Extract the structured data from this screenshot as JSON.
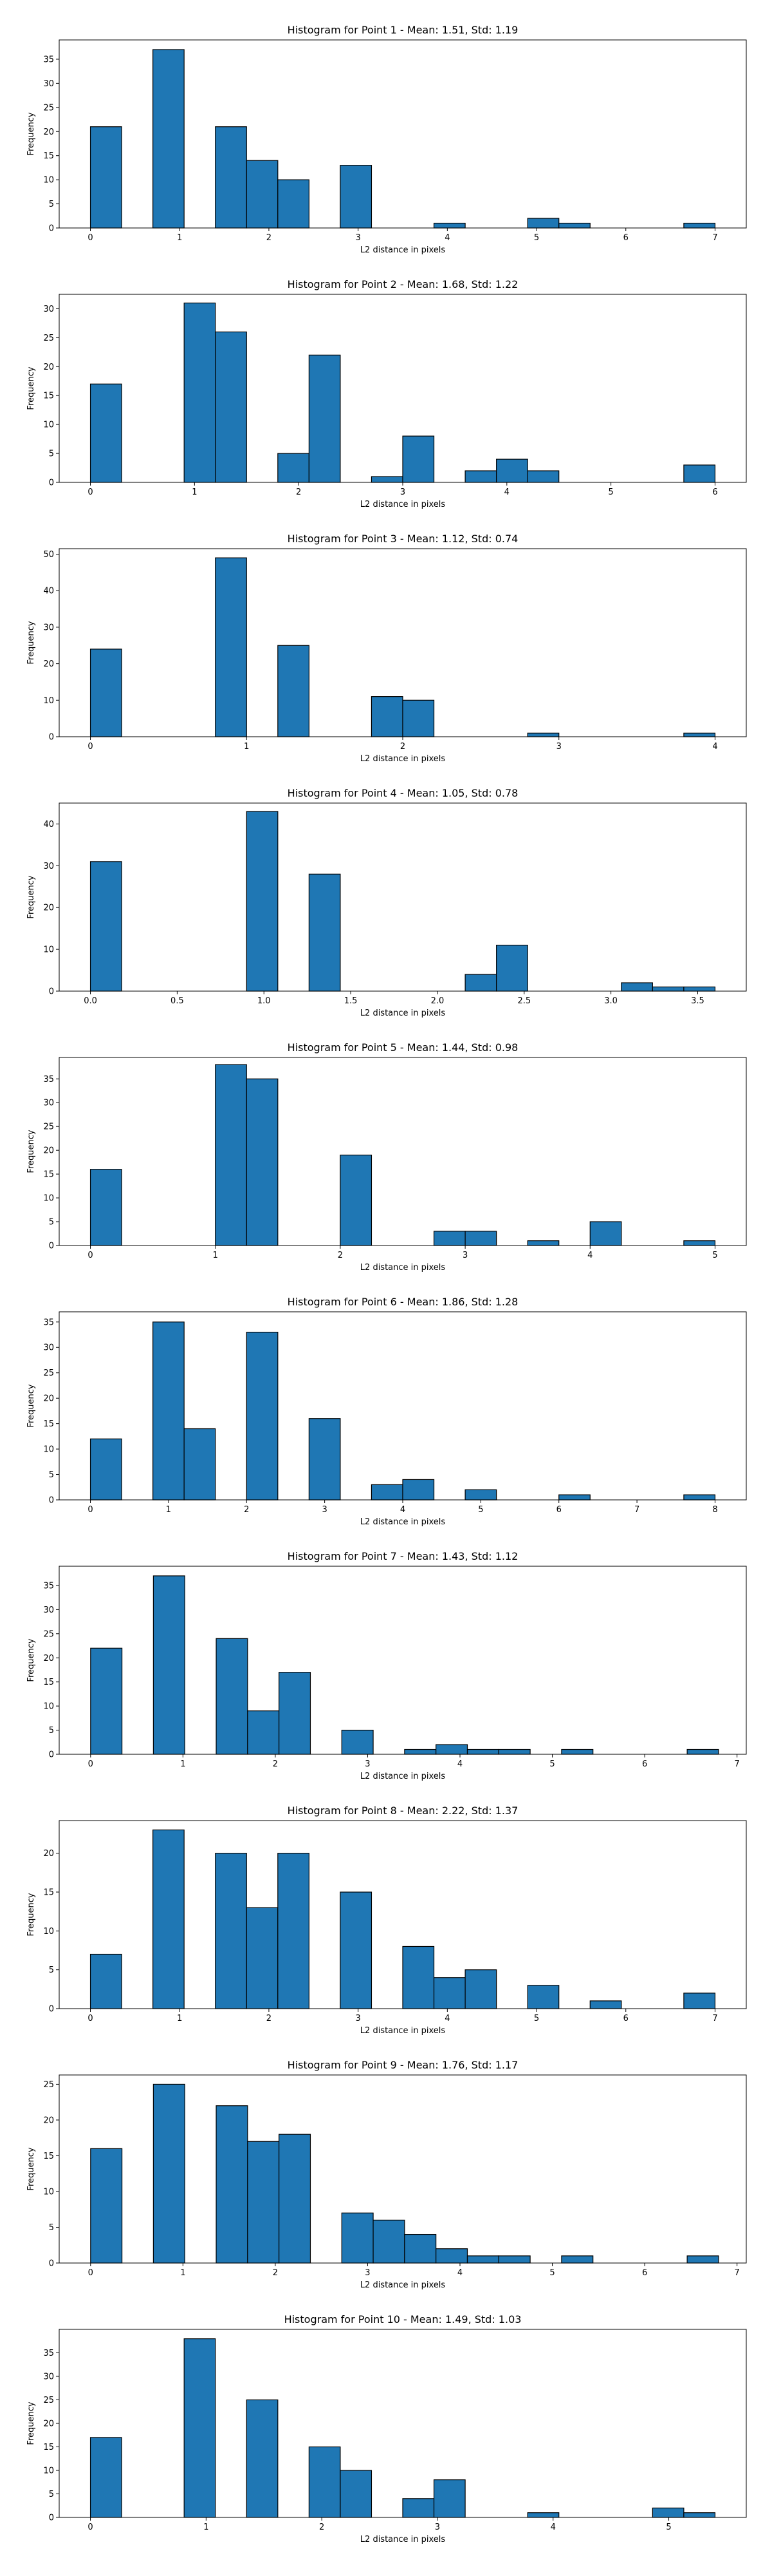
{
  "figure": {
    "background": "#ffffff",
    "bar_color": "#1f77b4",
    "edge_color": "#000000"
  },
  "chart_data": [
    {
      "type": "bar",
      "title": "Histogram for Point 1 - Mean: 1.51, Std: 1.19",
      "xlabel": "L2 distance in pixels",
      "ylabel": "Frequency",
      "xlim": [
        -0.35,
        7.35
      ],
      "ylim": [
        0,
        39
      ],
      "xticks": [
        0,
        1,
        2,
        3,
        4,
        5,
        6,
        7
      ],
      "xtick_labels": [
        "0",
        "1",
        "2",
        "3",
        "4",
        "5",
        "6",
        "7"
      ],
      "yticks": [
        0,
        5,
        10,
        15,
        20,
        25,
        30,
        35
      ],
      "ytick_labels": [
        "0",
        "5",
        "10",
        "15",
        "20",
        "25",
        "30",
        "35"
      ],
      "bins": [
        [
          0,
          0.35,
          21
        ],
        [
          0.7,
          1.05,
          37
        ],
        [
          1.4,
          1.75,
          21
        ],
        [
          1.75,
          2.1,
          14
        ],
        [
          2.1,
          2.45,
          10
        ],
        [
          2.8,
          3.15,
          13
        ],
        [
          3.85,
          4.2,
          1
        ],
        [
          4.9,
          5.25,
          2
        ],
        [
          5.25,
          5.6,
          1
        ],
        [
          6.65,
          7.0,
          1
        ]
      ]
    },
    {
      "type": "bar",
      "title": "Histogram for Point 2 - Mean: 1.68, Std: 1.22",
      "xlabel": "L2 distance in pixels",
      "ylabel": "Frequency",
      "xlim": [
        -0.3,
        6.3
      ],
      "ylim": [
        0,
        32.5
      ],
      "xticks": [
        0,
        1,
        2,
        3,
        4,
        5,
        6
      ],
      "xtick_labels": [
        "0",
        "1",
        "2",
        "3",
        "4",
        "5",
        "6"
      ],
      "yticks": [
        0,
        5,
        10,
        15,
        20,
        25,
        30
      ],
      "ytick_labels": [
        "0",
        "5",
        "10",
        "15",
        "20",
        "25",
        "30"
      ],
      "bins": [
        [
          0,
          0.3,
          17
        ],
        [
          0.9,
          1.2,
          31
        ],
        [
          1.2,
          1.5,
          26
        ],
        [
          1.8,
          2.1,
          5
        ],
        [
          2.1,
          2.4,
          22
        ],
        [
          2.7,
          3.0,
          1
        ],
        [
          3.0,
          3.3,
          8
        ],
        [
          3.6,
          3.9,
          2
        ],
        [
          3.9,
          4.2,
          4
        ],
        [
          4.2,
          4.5,
          2
        ],
        [
          5.7,
          6.0,
          3
        ]
      ]
    },
    {
      "type": "bar",
      "title": "Histogram for Point 3 - Mean: 1.12, Std: 0.74",
      "xlabel": "L2 distance in pixels",
      "ylabel": "Frequency",
      "xlim": [
        -0.2,
        4.2
      ],
      "ylim": [
        0,
        51.5
      ],
      "xticks": [
        0,
        1,
        2,
        3,
        4
      ],
      "xtick_labels": [
        "0",
        "1",
        "2",
        "3",
        "4"
      ],
      "yticks": [
        0,
        10,
        20,
        30,
        40,
        50
      ],
      "ytick_labels": [
        "0",
        "10",
        "20",
        "30",
        "40",
        "50"
      ],
      "bins": [
        [
          0,
          0.2,
          24
        ],
        [
          0.8,
          1.0,
          49
        ],
        [
          1.2,
          1.4,
          25
        ],
        [
          1.8,
          2.0,
          11
        ],
        [
          2.0,
          2.2,
          10
        ],
        [
          2.8,
          3.0,
          1
        ],
        [
          3.8,
          4.0,
          1
        ]
      ]
    },
    {
      "type": "bar",
      "title": "Histogram for Point 4 - Mean: 1.05, Std: 0.78",
      "xlabel": "L2 distance in pixels",
      "ylabel": "Frequency",
      "xlim": [
        -0.18,
        3.78
      ],
      "ylim": [
        0,
        45
      ],
      "xticks": [
        0,
        0.5,
        1,
        1.5,
        2,
        2.5,
        3,
        3.5
      ],
      "xtick_labels": [
        "0.0",
        "0.5",
        "1.0",
        "1.5",
        "2.0",
        "2.5",
        "3.0",
        "3.5"
      ],
      "yticks": [
        0,
        10,
        20,
        30,
        40
      ],
      "ytick_labels": [
        "0",
        "10",
        "20",
        "30",
        "40"
      ],
      "bins": [
        [
          0,
          0.18,
          31
        ],
        [
          0.9,
          1.08,
          43
        ],
        [
          1.26,
          1.44,
          28
        ],
        [
          2.16,
          2.34,
          4
        ],
        [
          2.34,
          2.52,
          11
        ],
        [
          3.06,
          3.24,
          2
        ],
        [
          3.24,
          3.42,
          1
        ],
        [
          3.42,
          3.6,
          1
        ]
      ]
    },
    {
      "type": "bar",
      "title": "Histogram for Point 5 - Mean: 1.44, Std: 0.98",
      "xlabel": "L2 distance in pixels",
      "ylabel": "Frequency",
      "xlim": [
        -0.25,
        5.25
      ],
      "ylim": [
        0,
        39.5
      ],
      "xticks": [
        0,
        1,
        2,
        3,
        4,
        5
      ],
      "xtick_labels": [
        "0",
        "1",
        "2",
        "3",
        "4",
        "5"
      ],
      "yticks": [
        0,
        5,
        10,
        15,
        20,
        25,
        30,
        35
      ],
      "ytick_labels": [
        "0",
        "5",
        "10",
        "15",
        "20",
        "25",
        "30",
        "35"
      ],
      "bins": [
        [
          0,
          0.25,
          16
        ],
        [
          1.0,
          1.25,
          38
        ],
        [
          1.25,
          1.5,
          35
        ],
        [
          2.0,
          2.25,
          19
        ],
        [
          2.75,
          3.0,
          3
        ],
        [
          3.0,
          3.25,
          3
        ],
        [
          3.5,
          3.75,
          1
        ],
        [
          4.0,
          4.25,
          5
        ],
        [
          4.75,
          5.0,
          1
        ]
      ]
    },
    {
      "type": "bar",
      "title": "Histogram for Point 6 - Mean: 1.86, Std: 1.28",
      "xlabel": "L2 distance in pixels",
      "ylabel": "Frequency",
      "xlim": [
        -0.4,
        8.4
      ],
      "ylim": [
        0,
        37
      ],
      "xticks": [
        0,
        1,
        2,
        3,
        4,
        5,
        6,
        7,
        8
      ],
      "xtick_labels": [
        "0",
        "1",
        "2",
        "3",
        "4",
        "5",
        "6",
        "7",
        "8"
      ],
      "yticks": [
        0,
        5,
        10,
        15,
        20,
        25,
        30,
        35
      ],
      "ytick_labels": [
        "0",
        "5",
        "10",
        "15",
        "20",
        "25",
        "30",
        "35"
      ],
      "bins": [
        [
          0,
          0.4,
          12
        ],
        [
          0.8,
          1.2,
          35
        ],
        [
          1.2,
          1.6,
          14
        ],
        [
          2.0,
          2.4,
          33
        ],
        [
          2.8,
          3.2,
          16
        ],
        [
          3.6,
          4.0,
          3
        ],
        [
          4.0,
          4.4,
          4
        ],
        [
          4.8,
          5.2,
          2
        ],
        [
          6.0,
          6.4,
          1
        ],
        [
          7.6,
          8.0,
          1
        ]
      ]
    },
    {
      "type": "bar",
      "title": "Histogram for Point 7 - Mean: 1.43, Std: 1.12",
      "xlabel": "L2 distance in pixels",
      "ylabel": "Frequency",
      "xlim": [
        -0.34,
        7.1
      ],
      "ylim": [
        0,
        39
      ],
      "xticks": [
        0,
        1,
        2,
        3,
        4,
        5,
        6,
        7
      ],
      "xtick_labels": [
        "0",
        "1",
        "2",
        "3",
        "4",
        "5",
        "6",
        "7"
      ],
      "yticks": [
        0,
        5,
        10,
        15,
        20,
        25,
        30,
        35
      ],
      "ytick_labels": [
        "0",
        "5",
        "10",
        "15",
        "20",
        "25",
        "30",
        "35"
      ],
      "bins": [
        [
          0,
          0.34,
          22
        ],
        [
          0.68,
          1.02,
          37
        ],
        [
          1.36,
          1.7,
          24
        ],
        [
          1.7,
          2.04,
          9
        ],
        [
          2.04,
          2.38,
          17
        ],
        [
          2.72,
          3.06,
          5
        ],
        [
          3.4,
          3.74,
          1
        ],
        [
          3.74,
          4.08,
          2
        ],
        [
          4.08,
          4.42,
          1
        ],
        [
          4.42,
          4.76,
          1
        ],
        [
          5.1,
          5.44,
          1
        ],
        [
          6.46,
          6.8,
          1
        ]
      ]
    },
    {
      "type": "bar",
      "title": "Histogram for Point 8 - Mean: 2.22, Std: 1.37",
      "xlabel": "L2 distance in pixels",
      "ylabel": "Frequency",
      "xlim": [
        -0.35,
        7.35
      ],
      "ylim": [
        0,
        24.2
      ],
      "xticks": [
        0,
        1,
        2,
        3,
        4,
        5,
        6,
        7
      ],
      "xtick_labels": [
        "0",
        "1",
        "2",
        "3",
        "4",
        "5",
        "6",
        "7"
      ],
      "yticks": [
        0,
        5,
        10,
        15,
        20
      ],
      "ytick_labels": [
        "0",
        "5",
        "10",
        "15",
        "20"
      ],
      "bins": [
        [
          0,
          0.35,
          7
        ],
        [
          0.7,
          1.05,
          23
        ],
        [
          1.4,
          1.75,
          20
        ],
        [
          1.75,
          2.1,
          13
        ],
        [
          2.1,
          2.45,
          20
        ],
        [
          2.8,
          3.15,
          15
        ],
        [
          3.5,
          3.85,
          8
        ],
        [
          3.85,
          4.2,
          4
        ],
        [
          4.2,
          4.55,
          5
        ],
        [
          4.9,
          5.25,
          3
        ],
        [
          5.6,
          5.95,
          1
        ],
        [
          6.65,
          7.0,
          2
        ]
      ]
    },
    {
      "type": "bar",
      "title": "Histogram for Point 9 - Mean: 1.76, Std: 1.17",
      "xlabel": "L2 distance in pixels",
      "ylabel": "Frequency",
      "xlim": [
        -0.34,
        7.1
      ],
      "ylim": [
        0,
        26.3
      ],
      "xticks": [
        0,
        1,
        2,
        3,
        4,
        5,
        6,
        7
      ],
      "xtick_labels": [
        "0",
        "1",
        "2",
        "3",
        "4",
        "5",
        "6",
        "7"
      ],
      "yticks": [
        0,
        5,
        10,
        15,
        20,
        25
      ],
      "ytick_labels": [
        "0",
        "5",
        "10",
        "15",
        "20",
        "25"
      ],
      "bins": [
        [
          0,
          0.34,
          16
        ],
        [
          0.68,
          1.02,
          25
        ],
        [
          1.36,
          1.7,
          22
        ],
        [
          1.7,
          2.04,
          17
        ],
        [
          2.04,
          2.38,
          18
        ],
        [
          2.72,
          3.06,
          7
        ],
        [
          3.06,
          3.4,
          6
        ],
        [
          3.4,
          3.74,
          4
        ],
        [
          3.74,
          4.08,
          2
        ],
        [
          4.08,
          4.42,
          1
        ],
        [
          4.42,
          4.76,
          1
        ],
        [
          5.1,
          5.44,
          1
        ],
        [
          6.46,
          6.8,
          1
        ]
      ]
    },
    {
      "type": "bar",
      "title": "Histogram for Point 10 - Mean: 1.49, Std: 1.03",
      "xlabel": "L2 distance in pixels",
      "ylabel": "Frequency",
      "xlim": [
        -0.27,
        5.67
      ],
      "ylim": [
        0,
        40
      ],
      "xticks": [
        0,
        1,
        2,
        3,
        4,
        5
      ],
      "xtick_labels": [
        "0",
        "1",
        "2",
        "3",
        "4",
        "5"
      ],
      "yticks": [
        0,
        5,
        10,
        15,
        20,
        25,
        30,
        35
      ],
      "ytick_labels": [
        "0",
        "5",
        "10",
        "15",
        "20",
        "25",
        "30",
        "35"
      ],
      "bins": [
        [
          0,
          0.27,
          17
        ],
        [
          0.81,
          1.08,
          38
        ],
        [
          1.35,
          1.62,
          25
        ],
        [
          1.89,
          2.16,
          15
        ],
        [
          2.16,
          2.43,
          10
        ],
        [
          2.7,
          2.97,
          4
        ],
        [
          2.97,
          3.24,
          8
        ],
        [
          3.78,
          4.05,
          1
        ],
        [
          4.86,
          5.13,
          2
        ],
        [
          5.13,
          5.4,
          1
        ]
      ]
    }
  ]
}
